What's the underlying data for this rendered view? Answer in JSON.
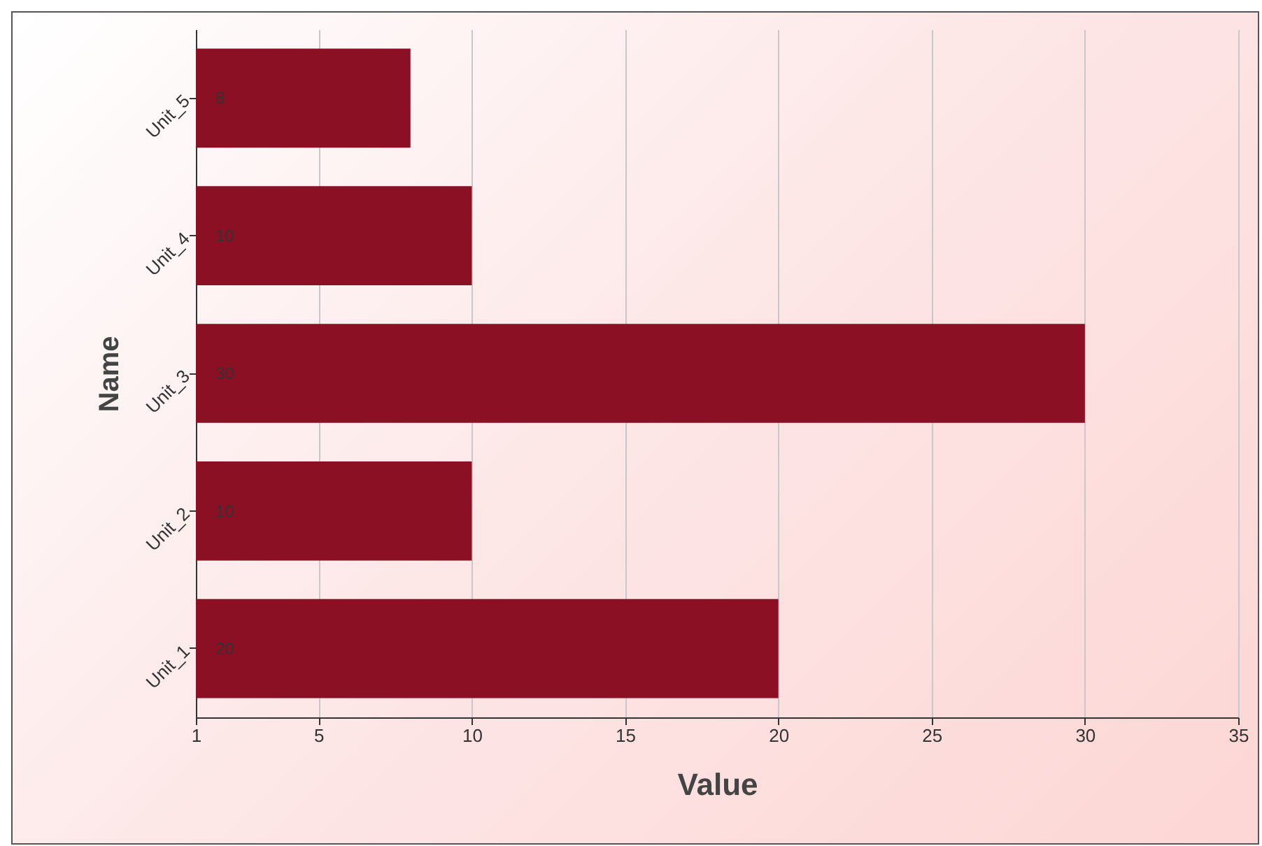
{
  "chart_data": {
    "type": "bar",
    "orientation": "horizontal",
    "xlabel": "Value",
    "ylabel": "Name",
    "categories": [
      "Unit_5",
      "Unit_4",
      "Unit_3",
      "Unit_2",
      "Unit_1"
    ],
    "values": [
      8,
      10,
      30,
      10,
      20
    ],
    "color": "#8b1024",
    "xlim": [
      1,
      35
    ],
    "xticks": [
      1,
      5,
      10,
      15,
      20,
      25,
      30,
      35
    ],
    "grid": "x",
    "data_labels": true
  }
}
